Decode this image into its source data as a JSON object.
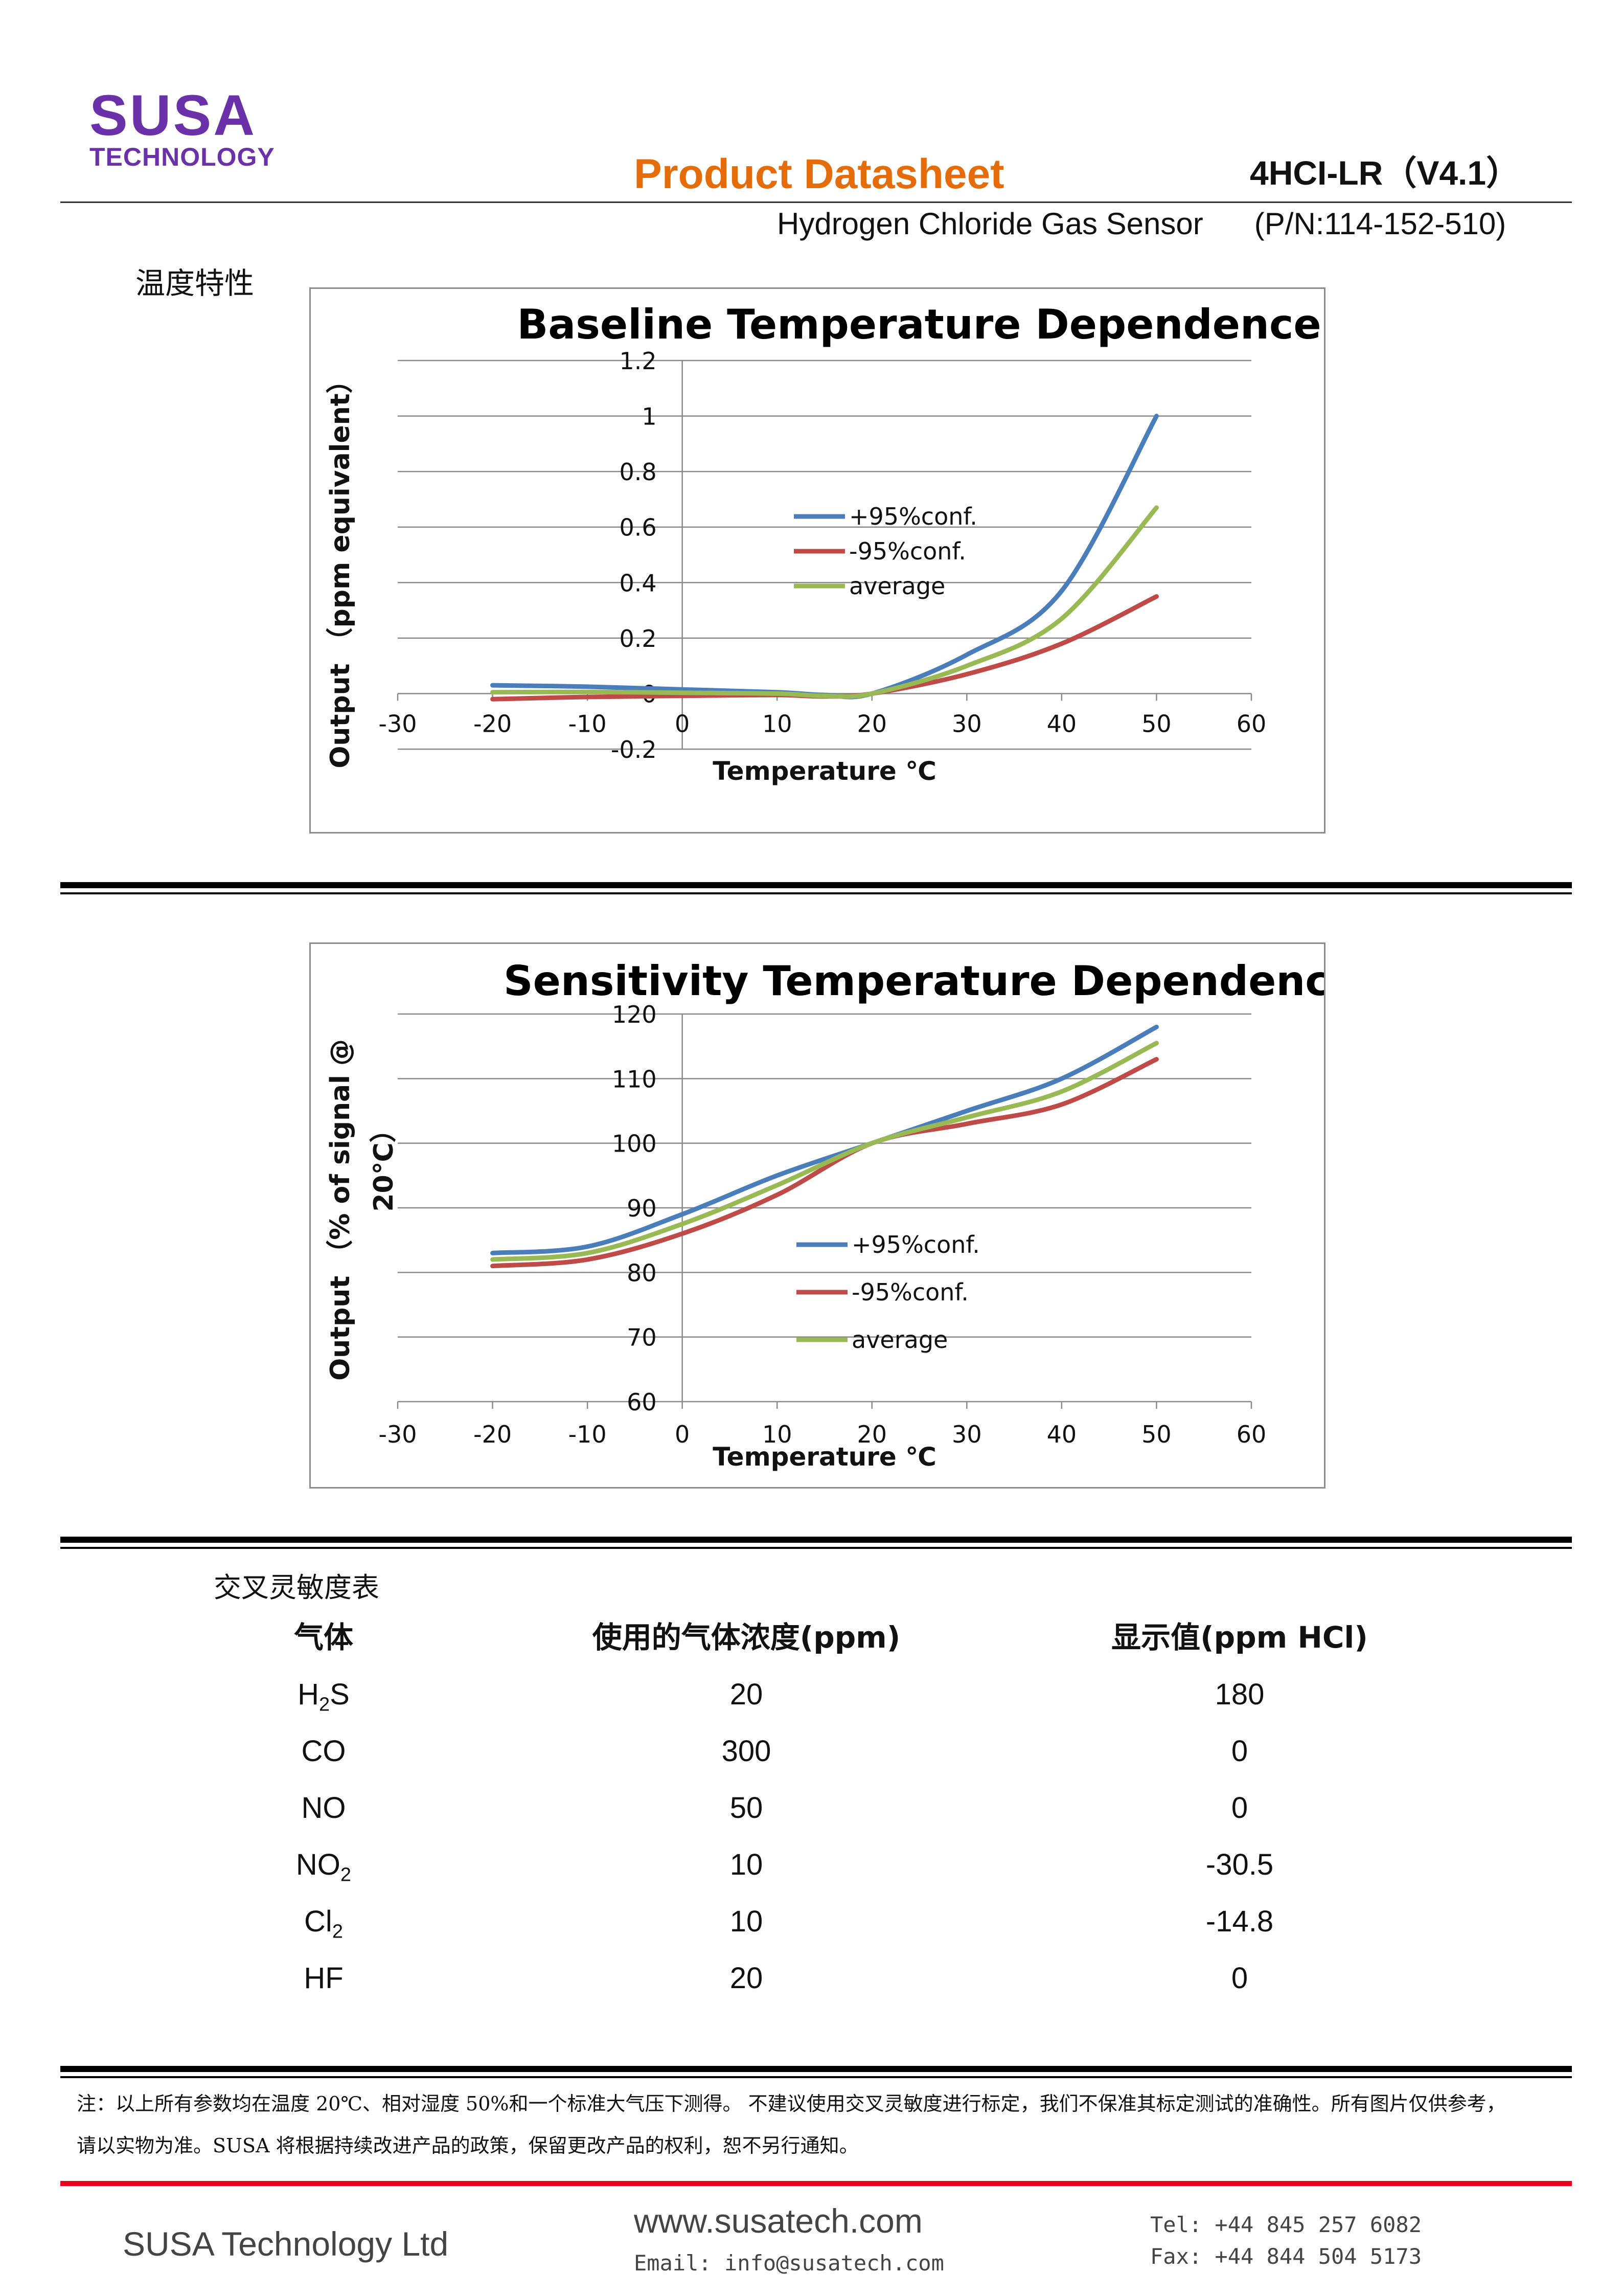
{
  "header": {
    "logo_main": "SUSA",
    "logo_sub": "TECHNOLOGY",
    "doc_title": "Product Datasheet",
    "model": "4HCI-LR（V4.1）",
    "sensor_name": "Hydrogen Chloride Gas Sensor",
    "part_number": "(P/N:114-152-510)"
  },
  "section_title": "温度特性",
  "colors": {
    "plus": "#4a7ebb",
    "minus": "#be4b48",
    "avg": "#98b954",
    "brand": "#6a31a8",
    "accent": "#e46c0a",
    "footer_rule": "#e8001c"
  },
  "chart_data": [
    {
      "type": "line",
      "title": "Baseline Temperature Dependence",
      "xlabel": "Temperature ℃",
      "ylabel": "Output （ppm equivalent）",
      "xlim": [
        -30,
        60
      ],
      "ylim": [
        -0.2,
        1.2
      ],
      "xticks": [
        "-30",
        "-20",
        "-10",
        "0",
        "10",
        "20",
        "30",
        "40",
        "50",
        "60"
      ],
      "yticks": [
        "1.2",
        "1",
        "0.8",
        "0.6",
        "0.4",
        "0.2",
        "0",
        "-0.2"
      ],
      "legend_position": "center",
      "grid": true,
      "series": [
        {
          "name": "+95%conf.",
          "color": "#4a7ebb",
          "x": [
            -20,
            -10,
            0,
            10,
            15,
            20,
            30,
            40,
            50
          ],
          "values": [
            0.03,
            0.025,
            0.015,
            0.005,
            -0.005,
            0.0,
            0.14,
            0.37,
            1.0
          ]
        },
        {
          "name": "-95%conf.",
          "color": "#be4b48",
          "x": [
            -20,
            -10,
            0,
            10,
            15,
            20,
            30,
            40,
            50
          ],
          "values": [
            -0.02,
            -0.012,
            -0.008,
            -0.005,
            -0.01,
            0.0,
            0.07,
            0.18,
            0.35
          ]
        },
        {
          "name": "average",
          "color": "#98b954",
          "x": [
            -20,
            -10,
            0,
            10,
            15,
            20,
            30,
            40,
            50
          ],
          "values": [
            0.005,
            0.006,
            0.003,
            0.0,
            -0.008,
            0.0,
            0.1,
            0.27,
            0.67
          ]
        }
      ]
    },
    {
      "type": "line",
      "title": "Sensitivity Temperature Dependence",
      "xlabel": "Temperature ℃",
      "ylabel": "Output （% of signal @ 20℃）",
      "ylabel_lines": [
        "Output （% of signal  @",
        "20℃）"
      ],
      "xlim": [
        -30,
        60
      ],
      "ylim": [
        60,
        120
      ],
      "xticks": [
        "-30",
        "-20",
        "-10",
        "0",
        "10",
        "20",
        "30",
        "40",
        "50",
        "60"
      ],
      "yticks": [
        "120",
        "110",
        "100",
        "90",
        "80",
        "70",
        "60"
      ],
      "legend_position": "center-right",
      "grid": true,
      "series": [
        {
          "name": "+95%conf.",
          "color": "#4a7ebb",
          "x": [
            -20,
            -10,
            0,
            10,
            20,
            30,
            40,
            50
          ],
          "values": [
            83,
            84,
            89,
            95,
            100,
            105,
            110,
            118
          ]
        },
        {
          "name": "-95%conf.",
          "color": "#be4b48",
          "x": [
            -20,
            -10,
            0,
            10,
            20,
            30,
            40,
            50
          ],
          "values": [
            81,
            82,
            86,
            92,
            100,
            103,
            106,
            113
          ]
        },
        {
          "name": "average",
          "color": "#98b954",
          "x": [
            -20,
            -10,
            0,
            10,
            20,
            30,
            40,
            50
          ],
          "values": [
            82,
            83,
            87.5,
            93.5,
            100,
            104,
            108,
            115.5
          ]
        }
      ]
    }
  ],
  "cross_table": {
    "title": "交叉灵敏度表",
    "headers": [
      "气体",
      "使用的气体浓度(ppm)",
      "显示值(ppm HCl)"
    ],
    "rows": [
      {
        "gas": "H2S",
        "gas_base": "H",
        "gas_sub": "2",
        "gas_tail": "S",
        "conc": "20",
        "reading": "180"
      },
      {
        "gas": "CO",
        "gas_base": "CO",
        "gas_sub": "",
        "gas_tail": "",
        "conc": "300",
        "reading": "0"
      },
      {
        "gas": "NO",
        "gas_base": "NO",
        "gas_sub": "",
        "gas_tail": "",
        "conc": "50",
        "reading": "0"
      },
      {
        "gas": "NO2",
        "gas_base": "NO",
        "gas_sub": "2",
        "gas_tail": "",
        "conc": "10",
        "reading": "-30.5"
      },
      {
        "gas": "Cl2",
        "gas_base": "Cl",
        "gas_sub": "2",
        "gas_tail": "",
        "conc": "10",
        "reading": "-14.8"
      },
      {
        "gas": "HF",
        "gas_base": "HF",
        "gas_sub": "",
        "gas_tail": "",
        "conc": "20",
        "reading": "0"
      }
    ]
  },
  "note": {
    "line1": "注：以上所有参数均在温度 20℃、相对湿度 50%和一个标准大气压下测得。 不建议使用交叉灵敏度进行标定，我们不保准其标定测试的准确性。所有图片仅供参考，",
    "line2": "请以实物为准。SUSA 将根据持续改进产品的政策，保留更改产品的权利，恕不另行通知。"
  },
  "footer": {
    "company": "SUSA Technology Ltd",
    "website": "www.susatech.com",
    "email": "Email: info@susatech.com",
    "tel": "Tel: +44 845 257 6082",
    "fax": "Fax: +44 844 504 5173"
  }
}
